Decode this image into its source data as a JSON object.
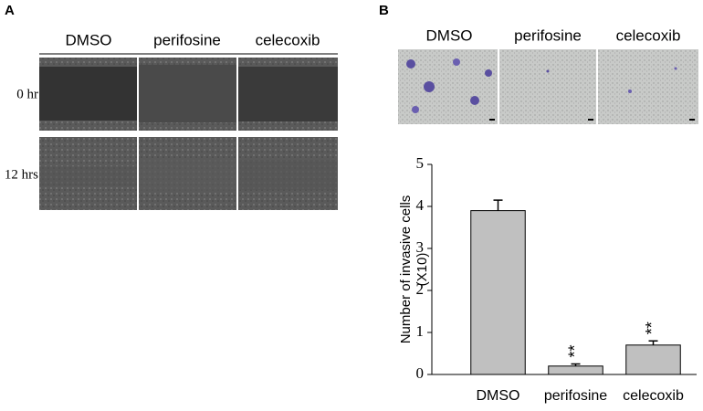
{
  "panel_a": {
    "label": "A",
    "columns": [
      "DMSO",
      "perifosine",
      "celecoxib"
    ],
    "rows": [
      "0 hr",
      "12 hrs"
    ]
  },
  "panel_b": {
    "label": "B",
    "columns": [
      "DMSO",
      "perifosine",
      "celecoxib"
    ]
  },
  "chart_data": {
    "type": "bar",
    "ylabel": [
      "Number of invasive cells",
      "(X10)"
    ],
    "categories": [
      "DMSO",
      "perifosine",
      "celecoxib"
    ],
    "values": [
      3.9,
      0.2,
      0.7
    ],
    "errors": [
      0.25,
      0.05,
      0.1
    ],
    "significance": [
      null,
      "**",
      "**"
    ],
    "color": "#c0c0c0",
    "ylim": [
      0,
      5
    ],
    "yticks": [
      0,
      1,
      2,
      3,
      4,
      5
    ]
  }
}
